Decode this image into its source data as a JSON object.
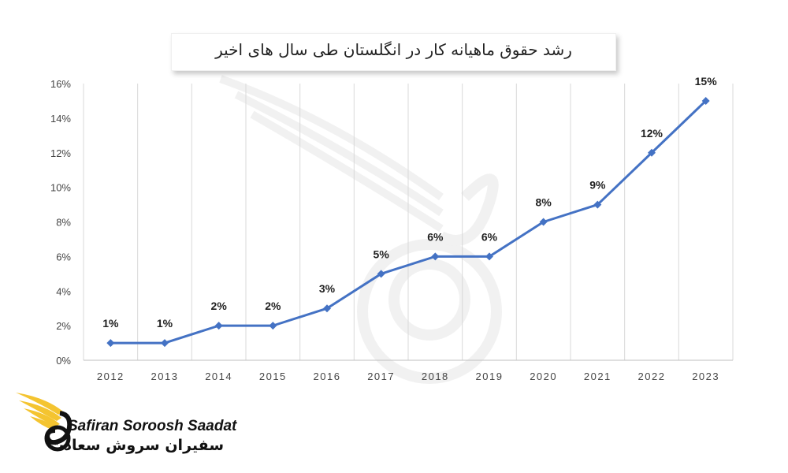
{
  "chart_data": {
    "type": "line",
    "title": "رشد حقوق ماهیانه کار در انگلستان طی سال های اخیر",
    "categories": [
      "2012",
      "2013",
      "2014",
      "2015",
      "2016",
      "2017",
      "2018",
      "2019",
      "2020",
      "2021",
      "2022",
      "2023"
    ],
    "series": [
      {
        "values": [
          1,
          1,
          2,
          2,
          3,
          5,
          6,
          6,
          8,
          9,
          12,
          15
        ],
        "labels": [
          "1%",
          "1%",
          "2%",
          "2%",
          "3%",
          "5%",
          "6%",
          "6%",
          "8%",
          "9%",
          "12%",
          "15%"
        ],
        "color": "#4472C4"
      }
    ],
    "y_ticks": [
      "0%",
      "2%",
      "4%",
      "6%",
      "8%",
      "10%",
      "12%",
      "14%",
      "16%"
    ],
    "ylim": [
      0,
      16
    ],
    "grid": "vertical",
    "legend": "none"
  },
  "brand": {
    "name_en": "Safiran Soroosh Saadat",
    "name_fa": "سفیران سروش سعادت",
    "primary_color": "#F4C430",
    "dark_color": "#111111"
  }
}
